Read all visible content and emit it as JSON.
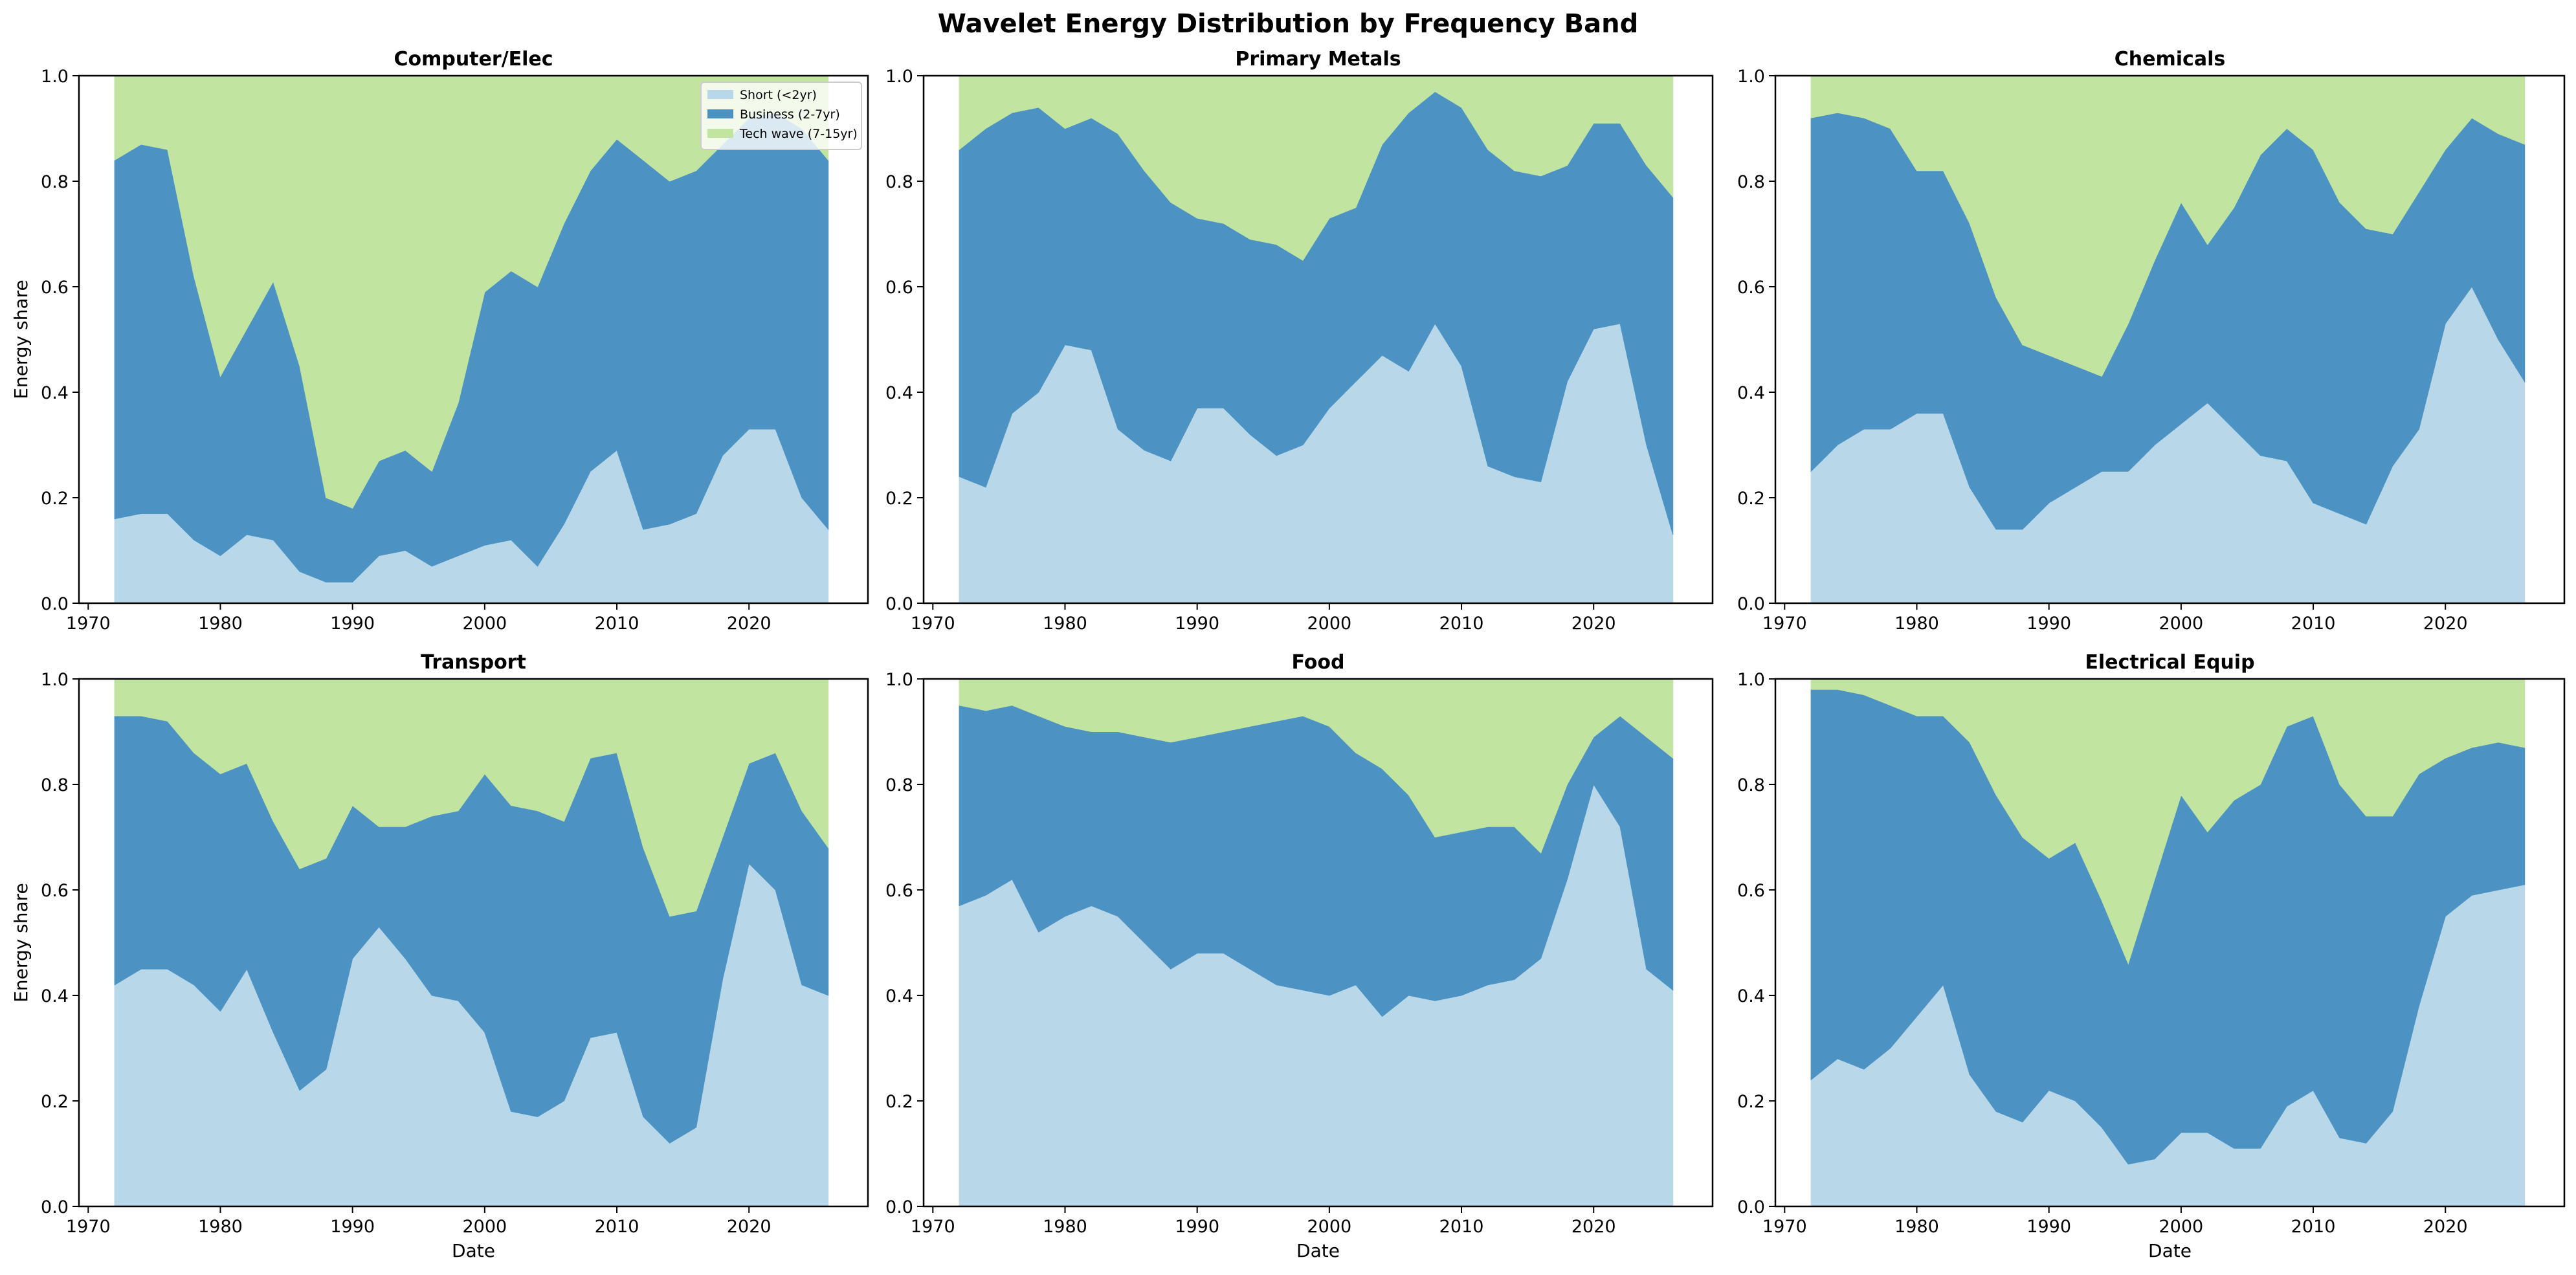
{
  "chart_data": [
    {
      "type": "area",
      "stacked": true,
      "title": "Computer/Elec",
      "xlabel": "",
      "ylabel": "Energy share",
      "ylim": [
        0,
        1
      ],
      "xlim": [
        1969.3,
        2029
      ],
      "x": [
        1972,
        1974,
        1976,
        1978,
        1980,
        1982,
        1984,
        1986,
        1988,
        1990,
        1992,
        1994,
        1996,
        1998,
        2000,
        2002,
        2004,
        2006,
        2008,
        2010,
        2012,
        2014,
        2016,
        2018,
        2020,
        2022,
        2024,
        2026
      ],
      "series": [
        {
          "name": "Short (<2yr)",
          "values": [
            0.16,
            0.17,
            0.17,
            0.12,
            0.09,
            0.13,
            0.12,
            0.06,
            0.04,
            0.04,
            0.09,
            0.1,
            0.07,
            0.09,
            0.11,
            0.12,
            0.07,
            0.15,
            0.25,
            0.29,
            0.14,
            0.15,
            0.17,
            0.28,
            0.33,
            0.33,
            0.2,
            0.14
          ]
        },
        {
          "name": "Business (2-7yr)",
          "values": [
            0.68,
            0.7,
            0.69,
            0.5,
            0.34,
            0.39,
            0.49,
            0.39,
            0.16,
            0.14,
            0.18,
            0.19,
            0.18,
            0.29,
            0.48,
            0.51,
            0.53,
            0.57,
            0.57,
            0.59,
            0.7,
            0.65,
            0.65,
            0.59,
            0.59,
            0.6,
            0.7,
            0.7
          ]
        },
        {
          "name": "Tech wave (7-15yr)",
          "values": [
            0.16,
            0.13,
            0.14,
            0.38,
            0.57,
            0.48,
            0.39,
            0.55,
            0.8,
            0.82,
            0.73,
            0.71,
            0.75,
            0.62,
            0.41,
            0.37,
            0.4,
            0.28,
            0.18,
            0.12,
            0.16,
            0.2,
            0.18,
            0.13,
            0.08,
            0.07,
            0.1,
            0.16
          ]
        }
      ]
    },
    {
      "type": "area",
      "stacked": true,
      "title": "Primary Metals",
      "xlabel": "",
      "ylabel": "",
      "ylim": [
        0,
        1
      ],
      "xlim": [
        1969.3,
        2029
      ],
      "x": [
        1972,
        1974,
        1976,
        1978,
        1980,
        1982,
        1984,
        1986,
        1988,
        1990,
        1992,
        1994,
        1996,
        1998,
        2000,
        2002,
        2004,
        2006,
        2008,
        2010,
        2012,
        2014,
        2016,
        2018,
        2020,
        2022,
        2024,
        2026
      ],
      "series": [
        {
          "name": "Short (<2yr)",
          "values": [
            0.24,
            0.22,
            0.36,
            0.4,
            0.49,
            0.48,
            0.33,
            0.29,
            0.27,
            0.37,
            0.37,
            0.32,
            0.28,
            0.3,
            0.37,
            0.42,
            0.47,
            0.44,
            0.53,
            0.45,
            0.26,
            0.24,
            0.23,
            0.42,
            0.52,
            0.53,
            0.3,
            0.13
          ]
        },
        {
          "name": "Business (2-7yr)",
          "values": [
            0.62,
            0.68,
            0.57,
            0.54,
            0.41,
            0.44,
            0.56,
            0.53,
            0.49,
            0.36,
            0.35,
            0.37,
            0.4,
            0.35,
            0.36,
            0.33,
            0.4,
            0.49,
            0.44,
            0.49,
            0.6,
            0.58,
            0.58,
            0.41,
            0.39,
            0.38,
            0.53,
            0.64
          ]
        },
        {
          "name": "Tech wave (7-15yr)",
          "values": [
            0.14,
            0.1,
            0.07,
            0.06,
            0.1,
            0.08,
            0.11,
            0.18,
            0.24,
            0.27,
            0.28,
            0.31,
            0.32,
            0.35,
            0.27,
            0.25,
            0.13,
            0.07,
            0.03,
            0.06,
            0.14,
            0.18,
            0.19,
            0.17,
            0.09,
            0.09,
            0.17,
            0.23
          ]
        }
      ]
    },
    {
      "type": "area",
      "stacked": true,
      "title": "Chemicals",
      "xlabel": "",
      "ylabel": "",
      "ylim": [
        0,
        1
      ],
      "xlim": [
        1969.3,
        2029
      ],
      "x": [
        1972,
        1974,
        1976,
        1978,
        1980,
        1982,
        1984,
        1986,
        1988,
        1990,
        1992,
        1994,
        1996,
        1998,
        2000,
        2002,
        2004,
        2006,
        2008,
        2010,
        2012,
        2014,
        2016,
        2018,
        2020,
        2022,
        2024,
        2026
      ],
      "series": [
        {
          "name": "Short (<2yr)",
          "values": [
            0.25,
            0.3,
            0.33,
            0.33,
            0.36,
            0.36,
            0.22,
            0.14,
            0.14,
            0.19,
            0.22,
            0.25,
            0.25,
            0.3,
            0.34,
            0.38,
            0.33,
            0.28,
            0.27,
            0.19,
            0.17,
            0.15,
            0.26,
            0.33,
            0.53,
            0.6,
            0.5,
            0.42
          ]
        },
        {
          "name": "Business (2-7yr)",
          "values": [
            0.67,
            0.63,
            0.59,
            0.57,
            0.46,
            0.46,
            0.5,
            0.44,
            0.35,
            0.28,
            0.23,
            0.18,
            0.28,
            0.35,
            0.42,
            0.3,
            0.42,
            0.57,
            0.63,
            0.67,
            0.59,
            0.56,
            0.44,
            0.45,
            0.33,
            0.32,
            0.39,
            0.45
          ]
        },
        {
          "name": "Tech wave (7-15yr)",
          "values": [
            0.08,
            0.07,
            0.08,
            0.1,
            0.18,
            0.18,
            0.28,
            0.42,
            0.51,
            0.53,
            0.55,
            0.57,
            0.47,
            0.35,
            0.24,
            0.32,
            0.25,
            0.15,
            0.1,
            0.14,
            0.24,
            0.29,
            0.3,
            0.22,
            0.14,
            0.08,
            0.11,
            0.13
          ]
        }
      ]
    },
    {
      "type": "area",
      "stacked": true,
      "title": "Transport",
      "xlabel": "Date",
      "ylabel": "Energy share",
      "ylim": [
        0,
        1
      ],
      "xlim": [
        1969.3,
        2029
      ],
      "x": [
        1972,
        1974,
        1976,
        1978,
        1980,
        1982,
        1984,
        1986,
        1988,
        1990,
        1992,
        1994,
        1996,
        1998,
        2000,
        2002,
        2004,
        2006,
        2008,
        2010,
        2012,
        2014,
        2016,
        2018,
        2020,
        2022,
        2024,
        2026
      ],
      "series": [
        {
          "name": "Short (<2yr)",
          "values": [
            0.42,
            0.45,
            0.45,
            0.42,
            0.37,
            0.45,
            0.33,
            0.22,
            0.26,
            0.47,
            0.53,
            0.47,
            0.4,
            0.39,
            0.33,
            0.18,
            0.17,
            0.2,
            0.32,
            0.33,
            0.17,
            0.12,
            0.15,
            0.43,
            0.65,
            0.6,
            0.42,
            0.4
          ]
        },
        {
          "name": "Business (2-7yr)",
          "values": [
            0.51,
            0.48,
            0.47,
            0.44,
            0.45,
            0.39,
            0.4,
            0.42,
            0.4,
            0.29,
            0.19,
            0.25,
            0.34,
            0.36,
            0.49,
            0.58,
            0.58,
            0.53,
            0.53,
            0.53,
            0.51,
            0.43,
            0.41,
            0.27,
            0.19,
            0.26,
            0.33,
            0.28
          ]
        },
        {
          "name": "Tech wave (7-15yr)",
          "values": [
            0.07,
            0.07,
            0.08,
            0.14,
            0.18,
            0.16,
            0.27,
            0.36,
            0.34,
            0.24,
            0.28,
            0.28,
            0.26,
            0.25,
            0.18,
            0.24,
            0.25,
            0.27,
            0.15,
            0.14,
            0.32,
            0.45,
            0.44,
            0.3,
            0.16,
            0.14,
            0.25,
            0.32
          ]
        }
      ]
    },
    {
      "type": "area",
      "stacked": true,
      "title": "Food",
      "xlabel": "Date",
      "ylabel": "",
      "ylim": [
        0,
        1
      ],
      "xlim": [
        1969.3,
        2029
      ],
      "x": [
        1972,
        1974,
        1976,
        1978,
        1980,
        1982,
        1984,
        1986,
        1988,
        1990,
        1992,
        1994,
        1996,
        1998,
        2000,
        2002,
        2004,
        2006,
        2008,
        2010,
        2012,
        2014,
        2016,
        2018,
        2020,
        2022,
        2024,
        2026
      ],
      "series": [
        {
          "name": "Short (<2yr)",
          "values": [
            0.57,
            0.59,
            0.62,
            0.52,
            0.55,
            0.57,
            0.55,
            0.5,
            0.45,
            0.48,
            0.48,
            0.45,
            0.42,
            0.41,
            0.4,
            0.42,
            0.36,
            0.4,
            0.39,
            0.4,
            0.42,
            0.43,
            0.47,
            0.62,
            0.8,
            0.72,
            0.45,
            0.41
          ]
        },
        {
          "name": "Business (2-7yr)",
          "values": [
            0.38,
            0.35,
            0.33,
            0.41,
            0.36,
            0.33,
            0.35,
            0.39,
            0.43,
            0.41,
            0.42,
            0.46,
            0.5,
            0.52,
            0.51,
            0.44,
            0.47,
            0.38,
            0.31,
            0.31,
            0.3,
            0.29,
            0.2,
            0.18,
            0.09,
            0.21,
            0.44,
            0.44
          ]
        },
        {
          "name": "Tech wave (7-15yr)",
          "values": [
            0.05,
            0.06,
            0.05,
            0.07,
            0.09,
            0.1,
            0.1,
            0.11,
            0.12,
            0.11,
            0.1,
            0.09,
            0.08,
            0.07,
            0.09,
            0.14,
            0.17,
            0.22,
            0.3,
            0.29,
            0.28,
            0.28,
            0.33,
            0.2,
            0.11,
            0.07,
            0.11,
            0.15
          ]
        }
      ]
    },
    {
      "type": "area",
      "stacked": true,
      "title": "Electrical Equip",
      "xlabel": "Date",
      "ylabel": "",
      "ylim": [
        0,
        1
      ],
      "xlim": [
        1969.3,
        2029
      ],
      "x": [
        1972,
        1974,
        1976,
        1978,
        1980,
        1982,
        1984,
        1986,
        1988,
        1990,
        1992,
        1994,
        1996,
        1998,
        2000,
        2002,
        2004,
        2006,
        2008,
        2010,
        2012,
        2014,
        2016,
        2018,
        2020,
        2022,
        2024,
        2026
      ],
      "series": [
        {
          "name": "Short (<2yr)",
          "values": [
            0.24,
            0.28,
            0.26,
            0.3,
            0.36,
            0.42,
            0.25,
            0.18,
            0.16,
            0.22,
            0.2,
            0.15,
            0.08,
            0.09,
            0.14,
            0.14,
            0.11,
            0.11,
            0.19,
            0.22,
            0.13,
            0.12,
            0.18,
            0.38,
            0.55,
            0.59,
            0.6,
            0.61
          ]
        },
        {
          "name": "Business (2-7yr)",
          "values": [
            0.74,
            0.7,
            0.71,
            0.65,
            0.57,
            0.51,
            0.63,
            0.6,
            0.54,
            0.44,
            0.49,
            0.43,
            0.38,
            0.53,
            0.64,
            0.57,
            0.66,
            0.69,
            0.72,
            0.71,
            0.67,
            0.62,
            0.56,
            0.44,
            0.3,
            0.28,
            0.28,
            0.26
          ]
        },
        {
          "name": "Tech wave (7-15yr)",
          "values": [
            0.02,
            0.02,
            0.03,
            0.05,
            0.07,
            0.07,
            0.12,
            0.22,
            0.3,
            0.34,
            0.31,
            0.42,
            0.54,
            0.38,
            0.22,
            0.29,
            0.23,
            0.2,
            0.09,
            0.07,
            0.2,
            0.26,
            0.26,
            0.18,
            0.15,
            0.13,
            0.12,
            0.13
          ]
        }
      ]
    }
  ],
  "figure": {
    "title": "Wavelet Energy Distribution by Frequency Band",
    "x_ticks": [
      "1970",
      "1980",
      "1990",
      "2000",
      "2010",
      "2020"
    ],
    "y_ticks": [
      "0.0",
      "0.2",
      "0.4",
      "0.6",
      "0.8",
      "1.0"
    ],
    "grid": false,
    "legend": {
      "placement": "upper-right",
      "panel": "Computer/Elec",
      "entries": [
        "Short (<2yr)",
        "Business (2-7yr)",
        "Tech wave (7-15yr)"
      ]
    },
    "colors": {
      "short": "#b8d8e9",
      "business": "#4c93c3",
      "tech": "#c1e5a1"
    }
  }
}
